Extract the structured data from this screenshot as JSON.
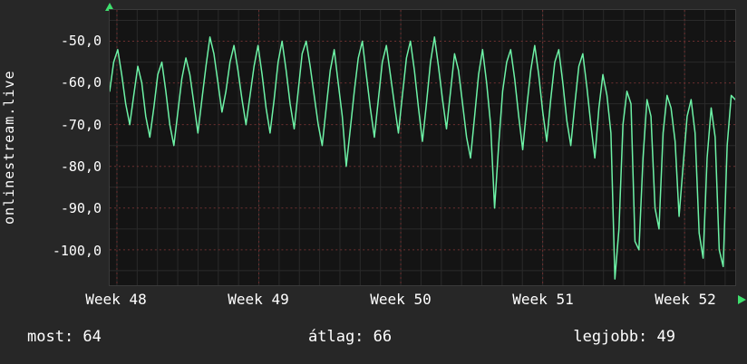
{
  "side_label": "onlinestream.live",
  "footer": {
    "most": "most: 64",
    "atlag": "átlag: 66",
    "legjobb": "legjobb: 49"
  },
  "chart_data": {
    "type": "line",
    "title": "onlinestream.live",
    "ylim": [
      -108.5,
      -42.5
    ],
    "grid": true,
    "legend": "none",
    "line_color": "#6df2a6",
    "grid_major_color": "#6e3030",
    "grid_minor_color": "#2a2a2a",
    "yticks": [
      -50,
      -60,
      -70,
      -80,
      -90,
      -100
    ],
    "ytick_labels": [
      "-50,0",
      "-60,0",
      "-70,0",
      "-80,0",
      "-90,0",
      "-100,0"
    ],
    "x_labels": [
      "Week 48",
      "Week 49",
      "Week 50",
      "Week 51",
      "Week 52"
    ],
    "stats": {
      "most": 64,
      "atlag": 66,
      "legjobb": 49
    },
    "values": [
      -62,
      -55,
      -52,
      -58,
      -65,
      -70,
      -63,
      -56,
      -60,
      -68,
      -73,
      -66,
      -58,
      -55,
      -62,
      -70,
      -75,
      -67,
      -59,
      -54,
      -58,
      -65,
      -72,
      -64,
      -56,
      -49,
      -53,
      -60,
      -67,
      -62,
      -55,
      -51,
      -57,
      -64,
      -70,
      -63,
      -56,
      -51,
      -58,
      -66,
      -72,
      -64,
      -55,
      -50,
      -57,
      -65,
      -71,
      -62,
      -53,
      -50,
      -56,
      -63,
      -70,
      -75,
      -66,
      -57,
      -52,
      -60,
      -68,
      -80,
      -71,
      -62,
      -54,
      -50,
      -58,
      -66,
      -73,
      -64,
      -55,
      -51,
      -58,
      -65,
      -72,
      -63,
      -54,
      -50,
      -57,
      -66,
      -74,
      -65,
      -55,
      -49,
      -56,
      -64,
      -71,
      -62,
      -53,
      -57,
      -65,
      -73,
      -78,
      -68,
      -58,
      -52,
      -60,
      -70,
      -90,
      -75,
      -62,
      -55,
      -52,
      -59,
      -68,
      -76,
      -66,
      -57,
      -51,
      -58,
      -67,
      -74,
      -64,
      -55,
      -52,
      -60,
      -69,
      -75,
      -65,
      -56,
      -53,
      -61,
      -70,
      -78,
      -66,
      -58,
      -63,
      -72,
      -107,
      -95,
      -70,
      -62,
      -65,
      -98,
      -100,
      -78,
      -64,
      -68,
      -90,
      -95,
      -72,
      -63,
      -66,
      -74,
      -92,
      -80,
      -68,
      -64,
      -72,
      -96,
      -102,
      -78,
      -66,
      -73,
      -100,
      -104,
      -75,
      -63,
      -64
    ]
  }
}
